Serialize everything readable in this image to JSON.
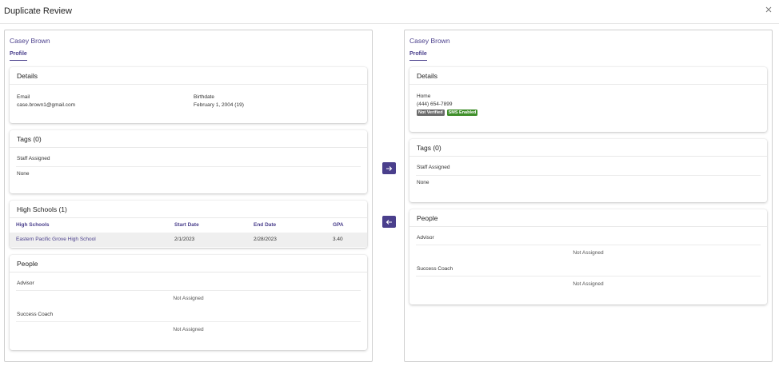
{
  "modal": {
    "title": "Duplicate Review",
    "close_icon": "close-icon"
  },
  "left": {
    "name": "Casey Brown",
    "tab": "Profile",
    "details": {
      "title": "Details",
      "email_label": "Email",
      "email_value": "case.brown1@gmail.com",
      "birthdate_label": "Birthdate",
      "birthdate_value": "February 1, 2004 (19)"
    },
    "tags": {
      "title": "Tags (0)",
      "staff_label": "Staff Assigned",
      "staff_value": "None"
    },
    "high_schools": {
      "title": "High Schools (1)",
      "columns": [
        "High Schools",
        "Start Date",
        "End Date",
        "GPA"
      ],
      "rows": [
        {
          "school": "Eastern Pacific Grove High School",
          "start": "2/1/2023",
          "end": "2/28/2023",
          "gpa": "3.40"
        }
      ]
    },
    "people": {
      "title": "People",
      "advisor_label": "Advisor",
      "advisor_value": "Not Assigned",
      "coach_label": "Success Coach",
      "coach_value": "Not Assigned"
    }
  },
  "right": {
    "name": "Casey Brown",
    "tab": "Profile",
    "details": {
      "title": "Details",
      "phone_label": "Home",
      "phone_value": "(444) 654-7899",
      "badges": [
        "Not Verified",
        "SMS Enabled"
      ]
    },
    "tags": {
      "title": "Tags (0)",
      "staff_label": "Staff Assigned",
      "staff_value": "None"
    },
    "people": {
      "title": "People",
      "advisor_label": "Advisor",
      "advisor_value": "Not Assigned",
      "coach_label": "Success Coach",
      "coach_value": "Not Assigned"
    }
  },
  "colors": {
    "accent": "#4a3f8c",
    "badge_gray": "#6b6b6b",
    "badge_green": "#3f8f2a"
  }
}
